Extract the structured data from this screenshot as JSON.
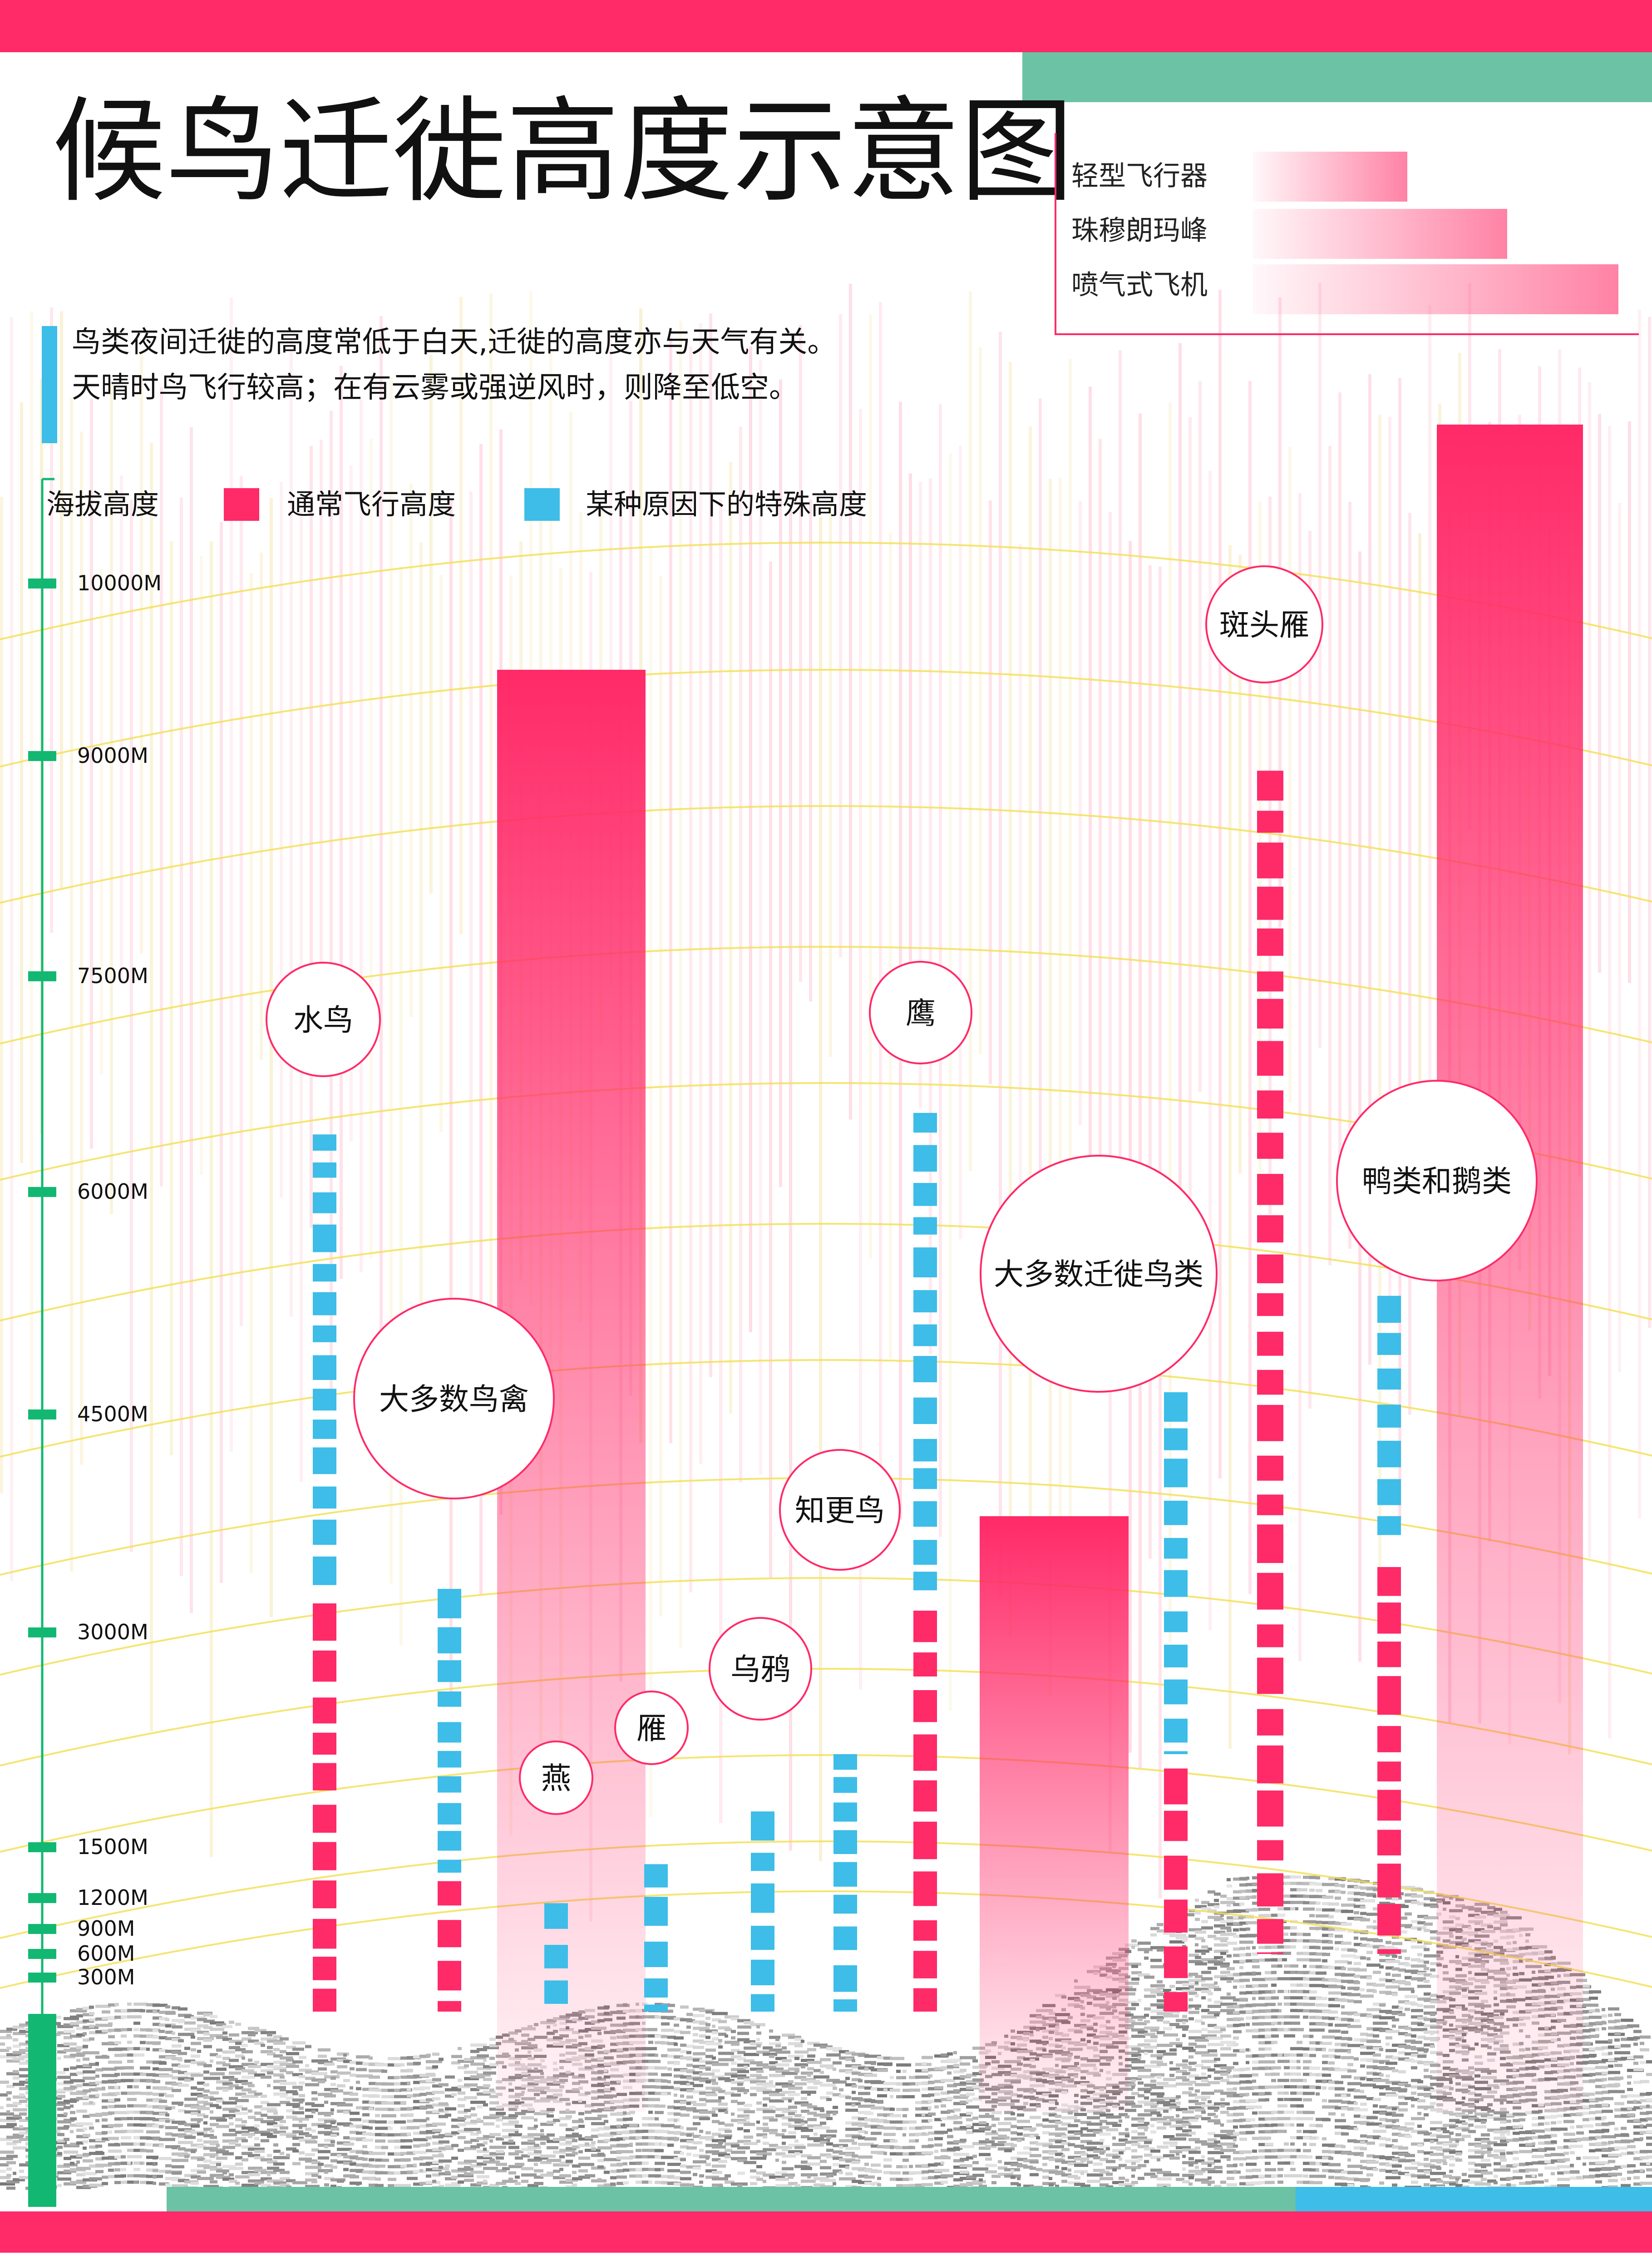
{
  "title": "候鸟迁徙高度示意图",
  "intro": {
    "line1": "鸟类夜间迁徙的高度常低于白天,迁徙的高度亦与天气有关。",
    "line2": "天晴时鸟飞行较高；在有云雾或强逆风时，则降至低空。"
  },
  "reference_legend": [
    {
      "label": "轻型飞行器"
    },
    {
      "label": "珠穆朗玛峰"
    },
    {
      "label": "喷气式飞机"
    }
  ],
  "legend": {
    "axis_label": "海拔高度",
    "normal_label": "通常飞行高度",
    "special_label": "某种原因下的特殊高度"
  },
  "colors": {
    "pink": "#ff2a68",
    "blue": "#3dbde8",
    "green": "#12b872",
    "teal": "#6cc2a4",
    "yellow": "#f2de50",
    "gray": "#9a9a9a"
  },
  "chart_data": {
    "type": "bar",
    "ylabel": "海拔高度",
    "y_ticks": [
      "10000M",
      "9000M",
      "7500M",
      "6000M",
      "4500M",
      "3000M",
      "1500M",
      "1200M",
      "900M",
      "600M",
      "300M"
    ],
    "references": [
      {
        "name": "珠穆朗玛峰",
        "value": 9500
      },
      {
        "name": "轻型飞行器",
        "value": 3800
      },
      {
        "name": "喷气式飞机",
        "value": 11000
      }
    ],
    "birds": [
      {
        "name": "水鸟",
        "special": [
          3300,
          6400
        ],
        "normal": [
          0,
          3200
        ]
      },
      {
        "name": "大多数鸟禽",
        "special": [
          1350,
          3300
        ],
        "normal": [
          0,
          1300
        ]
      },
      {
        "name": "燕",
        "special": [
          0,
          1150
        ],
        "normal": null
      },
      {
        "name": "雁",
        "special": [
          0,
          1400
        ],
        "normal": null
      },
      {
        "name": "乌鸦",
        "special": [
          0,
          1750
        ],
        "normal": null
      },
      {
        "name": "知更鸟",
        "special": [
          0,
          2150
        ],
        "normal": null
      },
      {
        "name": "鹰",
        "special": [
          3250,
          6550
        ],
        "normal": [
          0,
          3150
        ]
      },
      {
        "name": "大多数迁徙鸟类",
        "special": [
          2150,
          4650
        ],
        "normal": [
          0,
          2050
        ]
      },
      {
        "name": "斑头雁",
        "special": null,
        "normal": [
          600,
          8900
        ]
      },
      {
        "name": "鸭类和鹅类",
        "special": [
          3600,
          5300
        ],
        "normal": [
          600,
          3450
        ]
      }
    ]
  }
}
